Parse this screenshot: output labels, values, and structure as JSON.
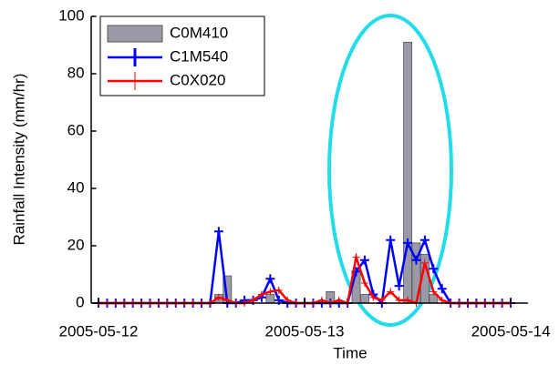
{
  "chart_data": {
    "type": "combo",
    "x_label": "Time",
    "y_label": "Rainfall Intensity (mm/hr)",
    "x": [
      0,
      1,
      2,
      3,
      4,
      5,
      6,
      7,
      8,
      9,
      10,
      11,
      12,
      13,
      14,
      15,
      16,
      17,
      18,
      19,
      20,
      21,
      22,
      23,
      24,
      25,
      26,
      27,
      28,
      29,
      30,
      31,
      32,
      33,
      34,
      35,
      36,
      37,
      38,
      39,
      40,
      41,
      42,
      43,
      44,
      45,
      46,
      47,
      48
    ],
    "xlim": [
      -1,
      50
    ],
    "xticks": [
      {
        "value": 0,
        "label": "2005-05-12"
      },
      {
        "value": 24,
        "label": "2005-05-13"
      },
      {
        "value": 48,
        "label": "2005-05-14"
      }
    ],
    "ylim": [
      0,
      100
    ],
    "yticks": [
      0,
      20,
      40,
      60,
      80,
      100
    ],
    "series": [
      {
        "name": "C0M410",
        "type": "bar",
        "color": "#9a9aa6",
        "values": [
          0,
          0,
          0,
          0,
          0,
          0,
          0,
          0,
          0,
          0,
          0,
          0,
          0,
          0,
          3,
          9.5,
          0,
          0,
          0,
          0,
          3,
          0,
          0,
          0,
          0,
          0,
          0,
          4,
          0,
          0,
          11,
          3,
          0,
          0,
          0,
          0,
          91,
          21,
          17,
          3,
          0,
          0,
          0,
          0,
          0,
          0,
          0,
          0,
          0
        ]
      },
      {
        "name": "C1M540",
        "type": "line",
        "color": "#0000ff",
        "values": [
          0,
          0,
          0,
          0,
          0,
          0,
          0,
          0,
          0,
          0,
          0,
          0,
          0,
          0,
          25,
          0,
          0,
          1,
          1,
          2,
          8.5,
          1,
          0,
          0,
          0,
          0,
          0,
          0,
          0,
          0,
          11,
          15,
          3,
          0,
          22,
          6,
          21,
          15,
          22,
          12,
          5,
          0,
          0,
          0,
          0,
          0,
          0,
          0,
          0
        ]
      },
      {
        "name": "C0X020",
        "type": "line",
        "color": "#ff0000",
        "values": [
          0,
          0,
          0,
          0,
          0,
          0,
          0,
          0,
          0,
          0,
          0,
          0,
          0,
          0,
          2,
          1,
          0,
          0,
          1,
          3,
          4,
          4.5,
          1,
          0,
          0,
          0,
          1,
          0,
          1,
          0,
          16,
          7,
          2,
          1,
          4,
          1,
          1,
          0,
          14,
          4,
          1,
          0,
          0,
          0,
          0,
          0,
          0,
          0,
          0
        ]
      }
    ]
  }
}
